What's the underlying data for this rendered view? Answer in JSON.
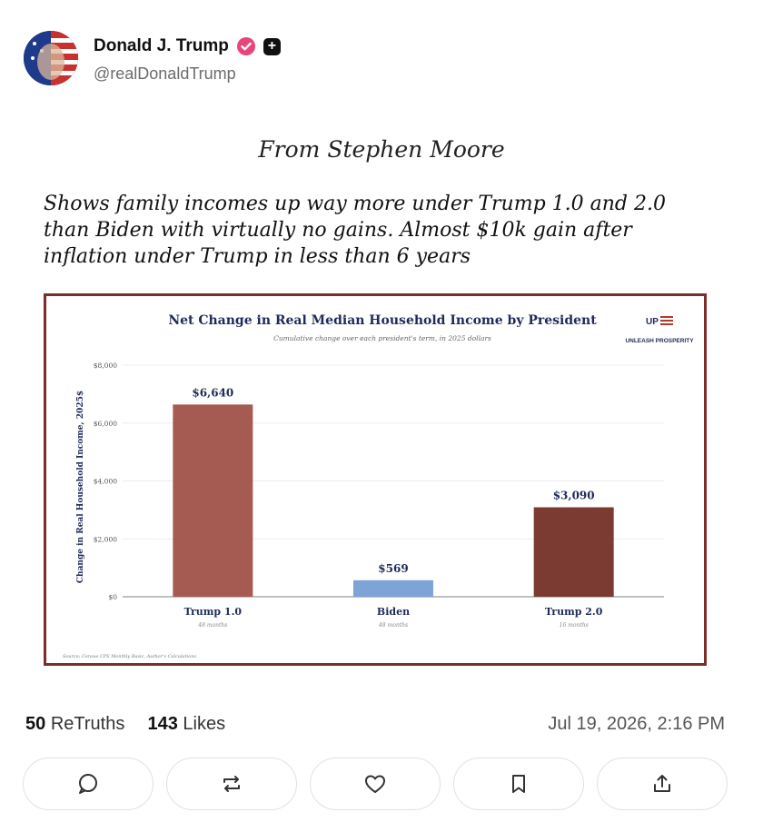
{
  "author": {
    "display_name": "Donald J. Trump",
    "handle": "@realDonaldTrump",
    "verified_color": "#e8457a"
  },
  "post": {
    "title": "From Stephen Moore",
    "body": "Shows family incomes up way more under Trump 1.0 and 2.0 than Biden with virtually no gains. Almost $10k gain after inflation under Trump in less than 6 years"
  },
  "chart_data": {
    "type": "bar",
    "title": "Net Change in Real Median Household Income by President",
    "subtitle": "Cumulative change over each president's term, in 2025 dollars",
    "ylabel": "Change in Real Household Income, 2025$",
    "xlabel": "",
    "ylim": [
      0,
      8000
    ],
    "yticks": [
      {
        "value": 0,
        "label": "$0"
      },
      {
        "value": 2000,
        "label": "$2,000"
      },
      {
        "value": 4000,
        "label": "$4,000"
      },
      {
        "value": 6000,
        "label": "$6,000"
      },
      {
        "value": 8000,
        "label": "$8,000"
      }
    ],
    "categories": [
      "Trump 1.0",
      "Biden",
      "Trump 2.0"
    ],
    "sublabels": [
      "48 months",
      "48 months",
      "16 months"
    ],
    "values": [
      6640,
      569,
      3090
    ],
    "value_labels": [
      "$6,640",
      "$569",
      "$3,090"
    ],
    "colors": [
      "#a55a52",
      "#7ea3d6",
      "#7b3a32"
    ],
    "grid": true,
    "source": "Source: Census CPS Monthly Basic, Author's Calculations",
    "logo_text": "UNLEASH PROSPERITY"
  },
  "stats": {
    "retruths_count": "50",
    "retruths_label": "ReTruths",
    "likes_count": "143",
    "likes_label": "Likes",
    "timestamp": "Jul 19, 2026, 2:16 PM"
  },
  "actions": [
    {
      "icon": "reply-icon"
    },
    {
      "icon": "retruth-icon"
    },
    {
      "icon": "like-icon"
    },
    {
      "icon": "bookmark-icon"
    },
    {
      "icon": "share-icon"
    }
  ]
}
